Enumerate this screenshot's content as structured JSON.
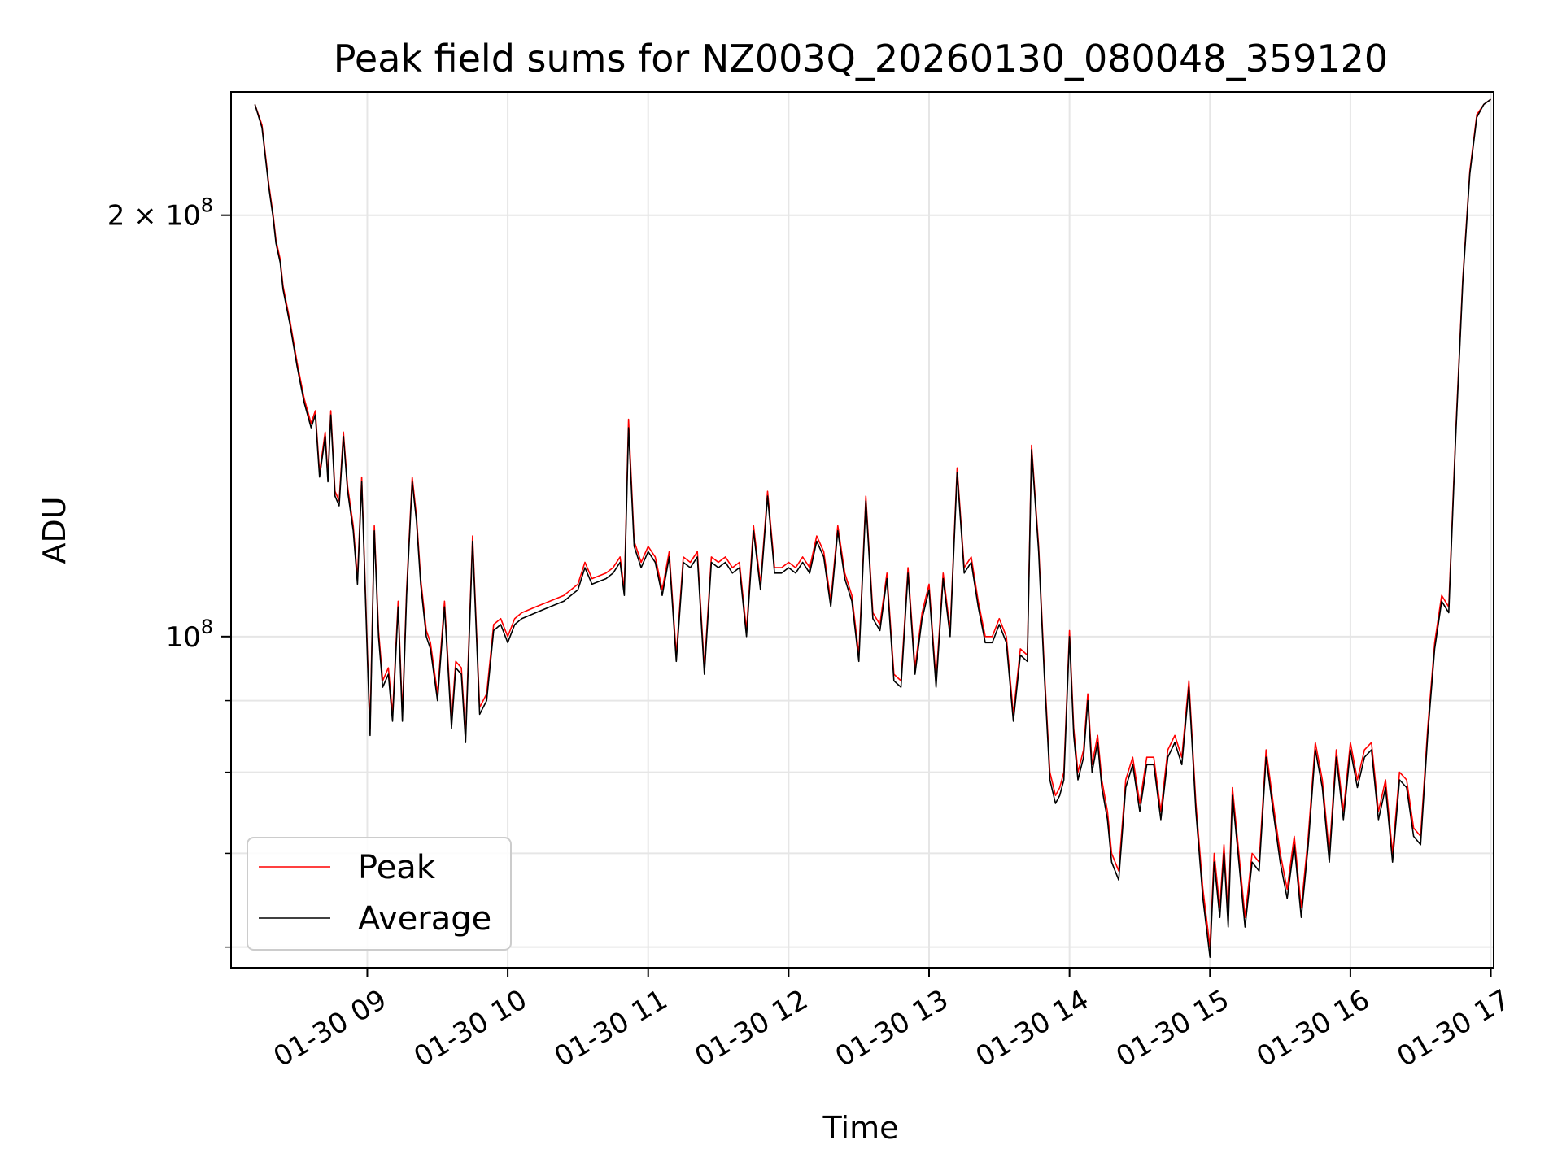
{
  "chart_data": {
    "type": "line",
    "title": "Peak field sums for NZ003Q_20260130_080048_359120",
    "xlabel": "Time",
    "ylabel": "ADU",
    "yscale": "log",
    "grid": true,
    "legend_placement": "lower-left",
    "xlim": [
      8.03,
      17.02
    ],
    "ylim": [
      58000000,
      245000000
    ],
    "x_ticks": [
      {
        "value": 9,
        "label": "01-30 09"
      },
      {
        "value": 10,
        "label": "01-30 10"
      },
      {
        "value": 11,
        "label": "01-30 11"
      },
      {
        "value": 12,
        "label": "01-30 12"
      },
      {
        "value": 13,
        "label": "01-30 13"
      },
      {
        "value": 14,
        "label": "01-30 14"
      },
      {
        "value": 15,
        "label": "01-30 15"
      },
      {
        "value": 16,
        "label": "01-30 16"
      },
      {
        "value": 17,
        "label": "01-30 17"
      }
    ],
    "y_major_ticks": [
      {
        "value": 100000000,
        "base": "10",
        "exp": "8"
      },
      {
        "value": 200000000,
        "base": "2 × 10",
        "exp": "8"
      }
    ],
    "y_minor_ticks": [
      60000000,
      70000000,
      80000000,
      90000000
    ],
    "series": [
      {
        "name": "Peak",
        "color": "#ff0000",
        "x": [
          8.2,
          8.25,
          8.3,
          8.33,
          8.35,
          8.38,
          8.4,
          8.45,
          8.5,
          8.55,
          8.6,
          8.63,
          8.66,
          8.7,
          8.72,
          8.74,
          8.77,
          8.8,
          8.83,
          8.86,
          8.9,
          8.93,
          8.96,
          9.0,
          9.02,
          9.05,
          9.08,
          9.11,
          9.15,
          9.18,
          9.22,
          9.25,
          9.28,
          9.32,
          9.35,
          9.38,
          9.42,
          9.45,
          9.5,
          9.55,
          9.6,
          9.63,
          9.67,
          9.7,
          9.75,
          9.8,
          9.85,
          9.9,
          9.95,
          10.0,
          10.05,
          10.1,
          10.2,
          10.3,
          10.4,
          10.5,
          10.55,
          10.6,
          10.7,
          10.75,
          10.8,
          10.83,
          10.86,
          10.9,
          10.95,
          11.0,
          11.05,
          11.1,
          11.15,
          11.2,
          11.25,
          11.3,
          11.35,
          11.4,
          11.45,
          11.5,
          11.55,
          11.6,
          11.65,
          11.7,
          11.75,
          11.8,
          11.85,
          11.9,
          11.95,
          12.0,
          12.05,
          12.1,
          12.15,
          12.2,
          12.25,
          12.3,
          12.35,
          12.4,
          12.45,
          12.5,
          12.55,
          12.6,
          12.65,
          12.7,
          12.75,
          12.8,
          12.85,
          12.9,
          12.95,
          13.0,
          13.05,
          13.1,
          13.15,
          13.2,
          13.25,
          13.3,
          13.35,
          13.4,
          13.45,
          13.5,
          13.55,
          13.6,
          13.65,
          13.7,
          13.73,
          13.78,
          13.82,
          13.86,
          13.9,
          13.93,
          13.96,
          14.0,
          14.03,
          14.06,
          14.1,
          14.13,
          14.16,
          14.2,
          14.23,
          14.27,
          14.3,
          14.35,
          14.4,
          14.45,
          14.5,
          14.55,
          14.6,
          14.65,
          14.7,
          14.75,
          14.8,
          14.85,
          14.9,
          14.95,
          15.0,
          15.03,
          15.07,
          15.1,
          15.13,
          15.16,
          15.2,
          15.25,
          15.3,
          15.35,
          15.4,
          15.45,
          15.5,
          15.55,
          15.6,
          15.65,
          15.7,
          15.75,
          15.8,
          15.85,
          15.9,
          15.95,
          16.0,
          16.05,
          16.1,
          16.15,
          16.2,
          16.25,
          16.3,
          16.35,
          16.4,
          16.45,
          16.5,
          16.55,
          16.6,
          16.65,
          16.7,
          16.75,
          16.8,
          16.85,
          16.9,
          16.95,
          17.0
        ],
        "values": [
          240000000,
          232000000,
          210000000,
          200000000,
          192000000,
          186000000,
          178000000,
          168000000,
          157000000,
          148000000,
          142000000,
          145000000,
          131000000,
          140000000,
          130000000,
          145000000,
          127000000,
          125000000,
          140000000,
          128000000,
          120000000,
          110000000,
          130000000,
          98000000,
          86000000,
          120000000,
          101000000,
          93000000,
          95000000,
          88000000,
          106000000,
          88000000,
          108000000,
          130000000,
          122000000,
          110000000,
          101000000,
          99000000,
          91000000,
          106000000,
          87000000,
          96000000,
          95000000,
          85000000,
          118000000,
          89000000,
          91000000,
          102000000,
          103000000,
          100000000,
          103000000,
          104000000,
          105000000,
          106000000,
          107000000,
          109000000,
          113000000,
          110000000,
          111000000,
          112000000,
          114000000,
          108000000,
          143000000,
          117000000,
          113000000,
          116000000,
          114000000,
          108000000,
          115000000,
          97000000,
          114000000,
          113000000,
          115000000,
          95000000,
          114000000,
          113000000,
          114000000,
          112000000,
          113000000,
          101000000,
          120000000,
          109000000,
          127000000,
          112000000,
          112000000,
          113000000,
          112000000,
          114000000,
          112000000,
          118000000,
          115000000,
          106000000,
          120000000,
          111000000,
          107000000,
          97000000,
          126000000,
          104000000,
          102000000,
          111000000,
          94000000,
          93000000,
          112000000,
          95000000,
          104000000,
          109000000,
          93000000,
          111000000,
          101000000,
          132000000,
          112000000,
          114000000,
          106000000,
          100000000,
          100000000,
          103000000,
          100000000,
          88000000,
          98000000,
          97000000,
          137000000,
          116000000,
          95000000,
          80000000,
          77000000,
          78000000,
          80000000,
          101000000,
          86000000,
          80000000,
          83000000,
          91000000,
          81000000,
          85000000,
          79000000,
          75000000,
          70000000,
          68000000,
          79000000,
          82000000,
          76000000,
          82000000,
          82000000,
          75000000,
          83000000,
          85000000,
          82000000,
          93000000,
          76000000,
          66000000,
          60000000,
          70000000,
          64000000,
          71000000,
          63000000,
          78000000,
          71000000,
          63000000,
          70000000,
          69000000,
          83000000,
          76000000,
          70000000,
          66000000,
          72000000,
          64000000,
          72000000,
          84000000,
          79000000,
          70000000,
          83000000,
          75000000,
          84000000,
          79000000,
          83000000,
          84000000,
          75000000,
          79000000,
          70000000,
          80000000,
          79000000,
          73000000,
          72000000,
          86000000,
          99000000,
          107000000,
          105000000,
          140000000,
          180000000,
          215000000,
          236000000,
          240000000,
          242000000
        ]
      },
      {
        "name": "Average",
        "color": "#000000",
        "x": [
          8.2,
          8.25,
          8.3,
          8.33,
          8.35,
          8.38,
          8.4,
          8.45,
          8.5,
          8.55,
          8.6,
          8.63,
          8.66,
          8.7,
          8.72,
          8.74,
          8.77,
          8.8,
          8.83,
          8.86,
          8.9,
          8.93,
          8.96,
          9.0,
          9.02,
          9.05,
          9.08,
          9.11,
          9.15,
          9.18,
          9.22,
          9.25,
          9.28,
          9.32,
          9.35,
          9.38,
          9.42,
          9.45,
          9.5,
          9.55,
          9.6,
          9.63,
          9.67,
          9.7,
          9.75,
          9.8,
          9.85,
          9.9,
          9.95,
          10.0,
          10.05,
          10.1,
          10.2,
          10.3,
          10.4,
          10.5,
          10.55,
          10.6,
          10.7,
          10.75,
          10.8,
          10.83,
          10.86,
          10.9,
          10.95,
          11.0,
          11.05,
          11.1,
          11.15,
          11.2,
          11.25,
          11.3,
          11.35,
          11.4,
          11.45,
          11.5,
          11.55,
          11.6,
          11.65,
          11.7,
          11.75,
          11.8,
          11.85,
          11.9,
          11.95,
          12.0,
          12.05,
          12.1,
          12.15,
          12.2,
          12.25,
          12.3,
          12.35,
          12.4,
          12.45,
          12.5,
          12.55,
          12.6,
          12.65,
          12.7,
          12.75,
          12.8,
          12.85,
          12.9,
          12.95,
          13.0,
          13.05,
          13.1,
          13.15,
          13.2,
          13.25,
          13.3,
          13.35,
          13.4,
          13.45,
          13.5,
          13.55,
          13.6,
          13.65,
          13.7,
          13.73,
          13.78,
          13.82,
          13.86,
          13.9,
          13.93,
          13.96,
          14.0,
          14.03,
          14.06,
          14.1,
          14.13,
          14.16,
          14.2,
          14.23,
          14.27,
          14.3,
          14.35,
          14.4,
          14.45,
          14.5,
          14.55,
          14.6,
          14.65,
          14.7,
          14.75,
          14.8,
          14.85,
          14.9,
          14.95,
          15.0,
          15.03,
          15.07,
          15.1,
          15.13,
          15.16,
          15.2,
          15.25,
          15.3,
          15.35,
          15.4,
          15.45,
          15.5,
          15.55,
          15.6,
          15.65,
          15.7,
          15.75,
          15.8,
          15.85,
          15.9,
          15.95,
          16.0,
          16.05,
          16.1,
          16.15,
          16.2,
          16.25,
          16.3,
          16.35,
          16.4,
          16.45,
          16.5,
          16.55,
          16.6,
          16.65,
          16.7,
          16.75,
          16.8,
          16.85,
          16.9,
          16.95,
          17.0
        ],
        "values": [
          240000000,
          231000000,
          209000000,
          199000000,
          191000000,
          185000000,
          177000000,
          167000000,
          156000000,
          147000000,
          141000000,
          144000000,
          130000000,
          139000000,
          129000000,
          144000000,
          126000000,
          124000000,
          139000000,
          127000000,
          119000000,
          109000000,
          129000000,
          97000000,
          85000000,
          119000000,
          100000000,
          92000000,
          94000000,
          87000000,
          105000000,
          87000000,
          107000000,
          129000000,
          121000000,
          109000000,
          100000000,
          98000000,
          90000000,
          105000000,
          86000000,
          95000000,
          94000000,
          84000000,
          117000000,
          88000000,
          90000000,
          101000000,
          102000000,
          99000000,
          102000000,
          103000000,
          104000000,
          105000000,
          106000000,
          108000000,
          112000000,
          109000000,
          110000000,
          111000000,
          113000000,
          107000000,
          141000000,
          116000000,
          112000000,
          115000000,
          113000000,
          107000000,
          114000000,
          96000000,
          113000000,
          112000000,
          114000000,
          94000000,
          113000000,
          112000000,
          113000000,
          111000000,
          112000000,
          100000000,
          119000000,
          108000000,
          126000000,
          111000000,
          111000000,
          112000000,
          111000000,
          113000000,
          111000000,
          117000000,
          114000000,
          105000000,
          119000000,
          110000000,
          106000000,
          96000000,
          125000000,
          103000000,
          101000000,
          110000000,
          93000000,
          92000000,
          111000000,
          94000000,
          103000000,
          108000000,
          92000000,
          110000000,
          100000000,
          131000000,
          111000000,
          113000000,
          105000000,
          99000000,
          99000000,
          102000000,
          99000000,
          87000000,
          97000000,
          96000000,
          136000000,
          115000000,
          94000000,
          79000000,
          76000000,
          77000000,
          79000000,
          100000000,
          85000000,
          79000000,
          82000000,
          90000000,
          80000000,
          84000000,
          78000000,
          74000000,
          69000000,
          67000000,
          78000000,
          81000000,
          75000000,
          81000000,
          81000000,
          74000000,
          82000000,
          84000000,
          81000000,
          92000000,
          75000000,
          65000000,
          59000000,
          69000000,
          63000000,
          70000000,
          62000000,
          77000000,
          70000000,
          62000000,
          69000000,
          68000000,
          82000000,
          75000000,
          69000000,
          65000000,
          71000000,
          63000000,
          71000000,
          83000000,
          78000000,
          69000000,
          82000000,
          74000000,
          83000000,
          78000000,
          82000000,
          83000000,
          74000000,
          78000000,
          69000000,
          79000000,
          78000000,
          72000000,
          71000000,
          85000000,
          98000000,
          106000000,
          104000000,
          139000000,
          179000000,
          214000000,
          235000000,
          240000000,
          242000000
        ]
      }
    ]
  }
}
